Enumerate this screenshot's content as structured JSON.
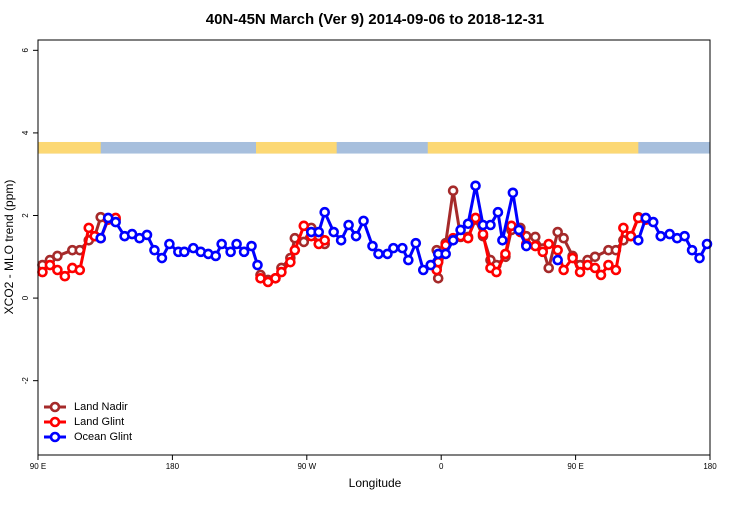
{
  "chart_data": {
    "type": "line",
    "title": "40N-45N March (Ver 9)   2014-09-06 to 2018-12-31",
    "x_label": "Longitude",
    "y_label": "XCO2 - MLO trend (ppm)",
    "xlim": [
      90,
      540
    ],
    "xticks": [
      {
        "value": 90,
        "label": "90 E"
      },
      180,
      {
        "value": 270,
        "label": "90 W"
      },
      {
        "value": 360,
        "label": "0"
      },
      {
        "value": 450,
        "label": "90 E"
      },
      {
        "value": 540,
        "label": "180"
      }
    ],
    "ylim": [
      -3.8,
      6.25
    ],
    "yticks": [
      -2,
      0,
      2,
      4,
      6
    ],
    "legend": "bottom-left",
    "land_mask": {
      "ylim": [
        3.5,
        3.78
      ],
      "land": [
        [
          90,
          132
        ],
        [
          236,
          290
        ],
        [
          351,
          492
        ]
      ],
      "land_color": "#fcd874",
      "ocean_color": "#a7bfdd"
    },
    "series": [
      {
        "name": "Land Nadir",
        "color": "#a52a2a",
        "x": [
          93,
          98,
          103,
          113,
          118,
          124,
          128,
          132,
          137,
          142,
          null,
          239,
          244,
          249,
          253,
          259,
          262,
          268,
          273,
          278,
          282,
          null,
          357,
          358,
          363,
          368,
          373,
          378,
          383,
          388,
          393,
          397,
          403,
          407,
          413,
          417,
          423,
          428,
          432,
          438,
          442,
          448,
          453,
          458,
          463,
          472,
          477,
          482,
          487,
          492,
          497
        ],
        "values": [
          0.8,
          0.92,
          1.02,
          1.16,
          1.16,
          1.4,
          1.5,
          1.96,
          1.9,
          1.9,
          null,
          0.56,
          0.44,
          0.48,
          0.73,
          0.97,
          1.45,
          1.36,
          1.7,
          1.5,
          1.31,
          null,
          1.16,
          0.48,
          1.33,
          2.6,
          1.48,
          1.48,
          1.9,
          1.5,
          0.92,
          0.8,
          1.0,
          1.65,
          1.7,
          1.5,
          1.48,
          1.2,
          0.73,
          1.6,
          1.45,
          1.02,
          0.8,
          0.92,
          1.0,
          1.16,
          1.16,
          1.4,
          1.5,
          1.96,
          1.9
        ]
      },
      {
        "name": "Land Glint",
        "color": "#ff0000",
        "x": [
          93,
          98,
          103,
          108,
          113,
          118,
          124,
          128,
          132,
          137,
          142,
          null,
          239,
          244,
          249,
          253,
          259,
          262,
          268,
          273,
          278,
          282,
          null,
          357,
          358,
          363,
          368,
          373,
          378,
          383,
          388,
          393,
          397,
          403,
          407,
          413,
          417,
          423,
          428,
          432,
          438,
          442,
          448,
          453,
          458,
          463,
          467,
          472,
          477,
          482,
          487,
          492,
          497
        ],
        "values": [
          0.63,
          0.8,
          0.68,
          0.53,
          0.73,
          0.68,
          1.7,
          1.5,
          1.45,
          1.9,
          1.94,
          null,
          0.48,
          0.39,
          0.48,
          0.63,
          0.87,
          1.16,
          1.75,
          1.5,
          1.31,
          1.4,
          null,
          0.68,
          0.87,
          1.28,
          1.45,
          1.5,
          1.45,
          1.94,
          1.55,
          0.73,
          0.63,
          1.07,
          1.75,
          1.6,
          1.31,
          1.26,
          1.12,
          1.31,
          1.16,
          0.68,
          0.97,
          0.63,
          0.8,
          0.73,
          0.56,
          0.8,
          0.68,
          1.7,
          1.5,
          1.94,
          1.9
        ]
      },
      {
        "name": "Ocean Glint",
        "color": "#0000ff",
        "x": [
          132,
          137,
          142,
          148,
          153,
          158,
          163,
          168,
          173,
          178,
          184,
          188,
          194,
          199,
          204,
          209,
          213,
          219,
          223,
          228,
          233,
          237,
          null,
          273,
          278,
          282,
          288,
          293,
          298,
          303,
          308,
          314,
          318,
          324,
          328,
          334,
          338,
          343,
          348,
          353,
          358,
          363,
          368,
          373,
          378,
          383,
          388,
          393,
          398,
          401,
          408,
          412,
          417,
          null,
          438,
          null,
          492,
          497,
          502,
          507,
          513,
          518,
          523,
          528,
          533,
          538
        ],
        "values": [
          1.45,
          1.94,
          1.84,
          1.5,
          1.55,
          1.45,
          1.53,
          1.16,
          0.97,
          1.31,
          1.12,
          1.12,
          1.21,
          1.12,
          1.07,
          1.02,
          1.31,
          1.12,
          1.31,
          1.12,
          1.26,
          0.8,
          null,
          1.6,
          1.6,
          2.08,
          1.6,
          1.4,
          1.77,
          1.5,
          1.87,
          1.26,
          1.07,
          1.07,
          1.21,
          1.21,
          0.92,
          1.33,
          0.68,
          0.8,
          1.07,
          1.07,
          1.4,
          1.65,
          1.8,
          2.72,
          1.77,
          1.77,
          2.08,
          1.4,
          2.55,
          1.65,
          1.26,
          null,
          0.92,
          null,
          1.4,
          1.94,
          1.84,
          1.5,
          1.55,
          1.45,
          1.5,
          1.16,
          0.97,
          1.31
        ]
      }
    ]
  }
}
